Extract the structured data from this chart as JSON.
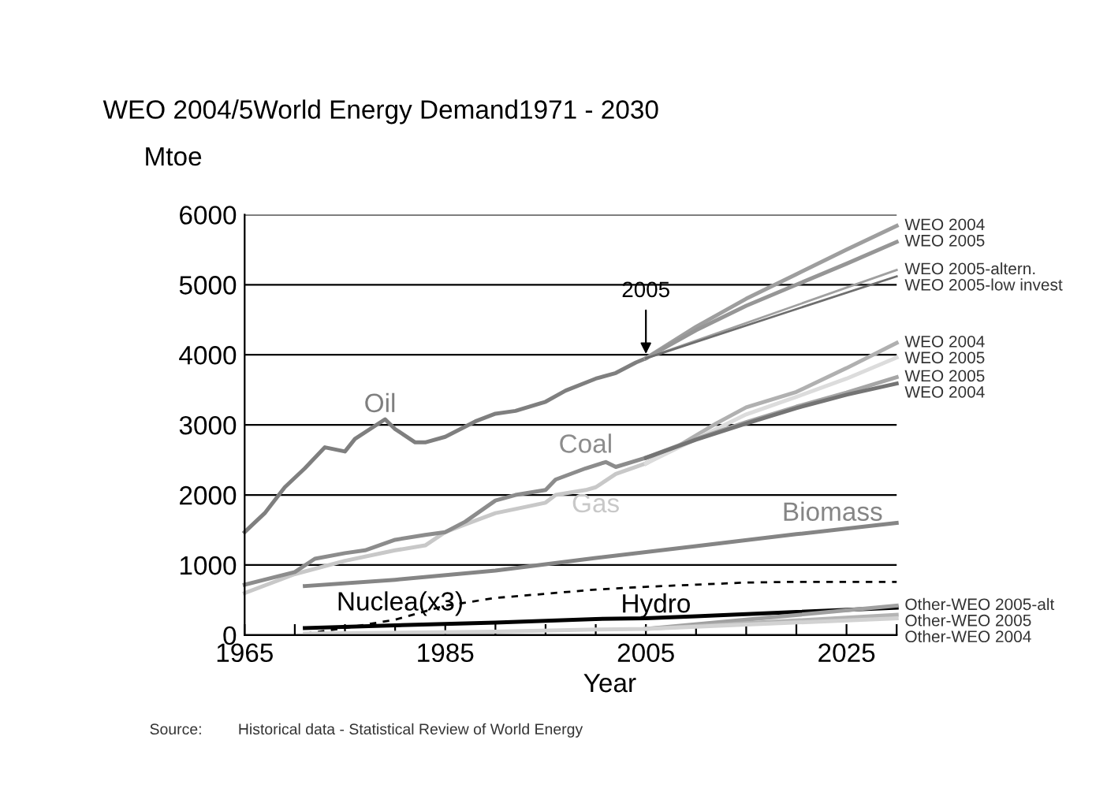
{
  "chart_data": {
    "type": "line",
    "title": "WEO 2004/5World Energy Demand1971 - 2030",
    "ylabel": "Mtoe",
    "xlabel": "Year",
    "xlim": [
      1965,
      2030
    ],
    "xticks": [
      1965,
      {
        "value": 1970,
        "label": null
      },
      {
        "value": 1975,
        "label": null
      },
      {
        "value": 1980,
        "label": null
      },
      1985,
      {
        "value": 1990,
        "label": null
      },
      {
        "value": 1995,
        "label": null
      },
      {
        "value": 2000,
        "label": null
      },
      2005,
      {
        "value": 2010,
        "label": null
      },
      {
        "value": 2015,
        "label": null
      },
      {
        "value": 2020,
        "label": null
      },
      2025,
      {
        "value": 2030,
        "label": null
      }
    ],
    "ylim": [
      0,
      6000
    ],
    "yticks": [
      0,
      1000,
      2000,
      3000,
      4000,
      5000,
      6000
    ],
    "grid": "y",
    "legend": false,
    "marker": "none",
    "series": [
      {
        "name": "Oil",
        "color": "#7f7f7f",
        "x": [
          1965,
          1967,
          1969,
          1971,
          1973,
          1975,
          1976,
          1979,
          1980,
          1982,
          1983,
          1985,
          1988,
          1990,
          1992,
          1995,
          1997,
          2000,
          2002,
          2004,
          2005
        ],
        "values": [
          1470,
          1740,
          2110,
          2380,
          2680,
          2620,
          2800,
          3080,
          2940,
          2750,
          2750,
          2830,
          3050,
          3160,
          3200,
          3330,
          3490,
          3660,
          3740,
          3890,
          3950
        ]
      },
      {
        "name": "Gas",
        "color": "#c8c8c8",
        "x": [
          1965,
          1970,
          1975,
          1980,
          1983,
          1985,
          1987,
          1990,
          1992,
          1995,
          1996,
          1999,
          2000,
          2002,
          2005
        ],
        "values": [
          600,
          870,
          1060,
          1210,
          1280,
          1470,
          1580,
          1740,
          1800,
          1890,
          2000,
          2070,
          2110,
          2300,
          2450
        ]
      },
      {
        "name": "Coal",
        "color": "#8c8c8c",
        "x": [
          1965,
          1970,
          1972,
          1975,
          1977,
          1980,
          1983,
          1985,
          1987,
          1990,
          1992,
          1995,
          1996,
          1999,
          2001,
          2002,
          2005
        ],
        "values": [
          720,
          900,
          1090,
          1170,
          1210,
          1360,
          1430,
          1470,
          1620,
          1920,
          2000,
          2070,
          2220,
          2380,
          2470,
          2400,
          2530
        ]
      },
      {
        "name": "Biomass",
        "color": "#858585",
        "x": [
          1971,
          1980,
          1990,
          2000,
          2010,
          2020,
          2030
        ],
        "values": [
          700,
          790,
          920,
          1100,
          1270,
          1440,
          1600
        ]
      },
      {
        "name": "Nuclea(x3)",
        "color": "#000000",
        "line_style": "dashed",
        "x": [
          1971,
          1975,
          1980,
          1985,
          1990,
          1995,
          2000,
          2005,
          2010,
          2015,
          2020,
          2030
        ],
        "values": [
          20,
          100,
          220,
          420,
          530,
          590,
          650,
          690,
          720,
          750,
          760,
          760
        ]
      },
      {
        "name": "Hydro",
        "color": "#000000",
        "x": [
          1971,
          1980,
          1990,
          2000,
          2005,
          2010,
          2020,
          2030
        ],
        "values": [
          100,
          140,
          180,
          230,
          240,
          270,
          330,
          390
        ]
      },
      {
        "name": "WEO 2004",
        "color": "#9e9e9e",
        "x": [
          2005,
          2010,
          2015,
          2020,
          2025,
          2030
        ],
        "values": [
          3950,
          4400,
          4800,
          5150,
          5500,
          5840
        ]
      },
      {
        "name": "WEO 2005",
        "color": "#969696",
        "x": [
          2005,
          2010,
          2015,
          2020,
          2025,
          2030
        ],
        "values": [
          3950,
          4350,
          4700,
          5000,
          5300,
          5610
        ]
      },
      {
        "name": "WEO 2005-altern.",
        "color": "#a0a0a0",
        "x": [
          2005,
          2030
        ],
        "values": [
          3950,
          5210
        ]
      },
      {
        "name": "WEO 2005-low invest",
        "color": "#6e6e6e",
        "x": [
          2005,
          2030
        ],
        "values": [
          3950,
          5120
        ]
      },
      {
        "name": "WEO 2004",
        "color": "#b0b0b0",
        "x": [
          2005,
          2008,
          2012,
          2015,
          2020,
          2025,
          2030
        ],
        "values": [
          2450,
          2680,
          3020,
          3250,
          3470,
          3810,
          4170
        ]
      },
      {
        "name": "WEO 2005",
        "color": "#dcdcdc",
        "x": [
          2005,
          2010,
          2015,
          2020,
          2025,
          2030
        ],
        "values": [
          2450,
          2800,
          3150,
          3400,
          3660,
          3960
        ]
      },
      {
        "name": "WEO 2005",
        "color": "#a6a6a6",
        "x": [
          2005,
          2010,
          2015,
          2020,
          2025,
          2030
        ],
        "values": [
          2530,
          2800,
          3040,
          3260,
          3460,
          3680
        ]
      },
      {
        "name": "WEO 2004",
        "color": "#747474",
        "x": [
          2005,
          2010,
          2015,
          2020,
          2025,
          2030
        ],
        "values": [
          2530,
          2790,
          3020,
          3240,
          3430,
          3590
        ]
      },
      {
        "name": "Other-WEO 2005-alt",
        "color": "#a0a0a0",
        "x": [
          2005,
          2015,
          2030
        ],
        "values": [
          90,
          220,
          420
        ]
      },
      {
        "name": "Other-WEO 2005",
        "color": "#b4b4b4",
        "x": [
          2005,
          2015,
          2030
        ],
        "values": [
          90,
          170,
          290
        ]
      },
      {
        "name": "Other-WEO 2004",
        "color": "#d2d2d2",
        "x": [
          1971,
          1990,
          2000,
          2005,
          2015,
          2030
        ],
        "values": [
          20,
          50,
          80,
          90,
          150,
          240
        ]
      }
    ],
    "annotations": [
      {
        "text": "2005",
        "x": 2005,
        "y": 3950
      },
      "Source:",
      "Historical data - Statistical Review of World Energy"
    ]
  }
}
